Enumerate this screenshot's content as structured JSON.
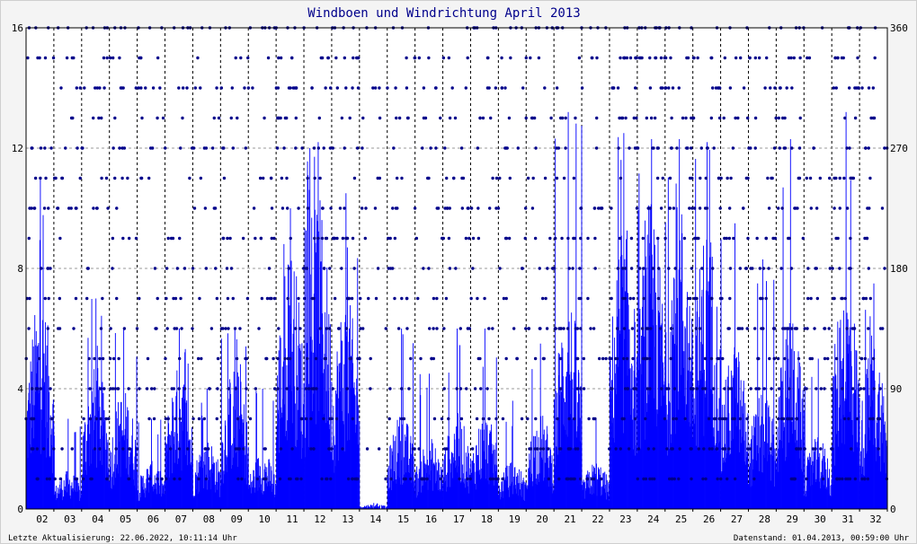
{
  "chart_data": {
    "type": "bar",
    "title": "Windboen und Windrichtung April 2013",
    "footer_left": "Letzte Aktualisierung: 22.06.2022, 10:11:14 Uhr",
    "footer_right": "Datenstand: 01.04.2013, 00:59:00 Uhr",
    "x_tick_labels": [
      "02",
      "03",
      "04",
      "05",
      "06",
      "07",
      "08",
      "09",
      "10",
      "11",
      "12",
      "13",
      "14",
      "15",
      "16",
      "17",
      "18",
      "19",
      "20",
      "21",
      "22",
      "23",
      "24",
      "25",
      "26",
      "27",
      "28",
      "29",
      "30",
      "31",
      "32"
    ],
    "x_range": [
      1,
      32
    ],
    "y_left": {
      "range": [
        0,
        16
      ],
      "ticks": [
        0,
        4,
        8,
        12,
        16
      ]
    },
    "y_right": {
      "range": [
        0,
        360
      ],
      "ticks": [
        0,
        90,
        180,
        270,
        360
      ]
    },
    "grid": true,
    "series": [
      {
        "kind": "gust_bars",
        "color": "#0000ff",
        "daily_max": [
          11.0,
          3.0,
          7.0,
          6.0,
          3.0,
          6.0,
          4.0,
          6.0,
          4.0,
          10.0,
          12.2,
          10.5,
          0.2,
          6.0,
          4.5,
          6.0,
          6.0,
          3.6,
          5.5,
          13.2,
          3.0,
          12.5,
          12.3,
          12.3,
          12.2,
          9.5,
          8.3,
          12.3,
          5.0,
          13.2,
          7.5
        ],
        "daily_typical": [
          4.5,
          0.8,
          3.0,
          2.5,
          1.0,
          3.0,
          1.5,
          3.0,
          1.2,
          5.5,
          6.5,
          4.5,
          0.1,
          2.0,
          1.5,
          2.0,
          2.0,
          1.0,
          2.0,
          4.5,
          1.0,
          6.0,
          6.5,
          6.5,
          6.0,
          3.5,
          2.5,
          4.0,
          1.5,
          5.0,
          3.5
        ]
      },
      {
        "kind": "direction_points",
        "color": "#00008b",
        "direction_levels_deg": [
          22.5,
          45,
          67.5,
          90,
          112.5,
          135,
          157.5,
          180,
          202.5,
          225,
          247.5,
          270,
          292.5,
          315,
          337.5,
          360
        ]
      }
    ],
    "colors": {
      "title": "#00008b",
      "bars": "#0000ff",
      "points": "#00008b",
      "plot_bg": "#ffffff",
      "frame_bg": "#f4f4f4"
    }
  }
}
